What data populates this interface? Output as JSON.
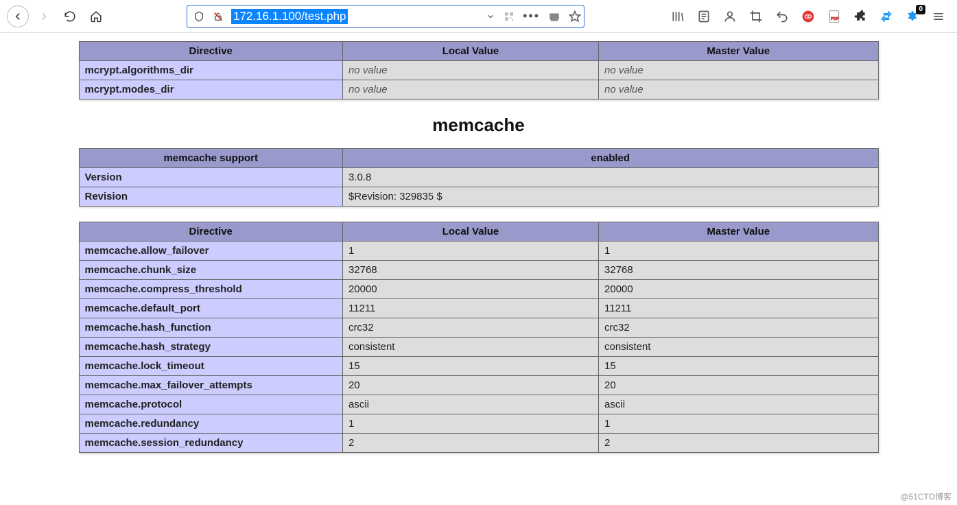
{
  "browser": {
    "url": "172.16.1.100/test.php",
    "badge_count": "0"
  },
  "table1": {
    "headers": [
      "Directive",
      "Local Value",
      "Master Value"
    ],
    "rows": [
      {
        "dir": "mcrypt.algorithms_dir",
        "local": "no value",
        "master": "no value",
        "italic": true
      },
      {
        "dir": "mcrypt.modes_dir",
        "local": "no value",
        "master": "no value",
        "italic": true
      }
    ]
  },
  "section_title": "memcache",
  "table2": {
    "header_left": "memcache support",
    "header_right": "enabled",
    "rows": [
      {
        "k": "Version",
        "v": "3.0.8"
      },
      {
        "k": "Revision",
        "v": "$Revision: 329835 $"
      }
    ]
  },
  "table3": {
    "headers": [
      "Directive",
      "Local Value",
      "Master Value"
    ],
    "rows": [
      {
        "dir": "memcache.allow_failover",
        "local": "1",
        "master": "1"
      },
      {
        "dir": "memcache.chunk_size",
        "local": "32768",
        "master": "32768"
      },
      {
        "dir": "memcache.compress_threshold",
        "local": "20000",
        "master": "20000"
      },
      {
        "dir": "memcache.default_port",
        "local": "11211",
        "master": "11211"
      },
      {
        "dir": "memcache.hash_function",
        "local": "crc32",
        "master": "crc32"
      },
      {
        "dir": "memcache.hash_strategy",
        "local": "consistent",
        "master": "consistent"
      },
      {
        "dir": "memcache.lock_timeout",
        "local": "15",
        "master": "15"
      },
      {
        "dir": "memcache.max_failover_attempts",
        "local": "20",
        "master": "20"
      },
      {
        "dir": "memcache.protocol",
        "local": "ascii",
        "master": "ascii"
      },
      {
        "dir": "memcache.redundancy",
        "local": "1",
        "master": "1"
      },
      {
        "dir": "memcache.session_redundancy",
        "local": "2",
        "master": "2"
      }
    ]
  },
  "watermark": "@51CTO博客",
  "colors": {
    "table_header_bg": "#9999cc",
    "table_key_bg": "#ccccff",
    "table_val_bg": "#dddddd",
    "url_highlight_bg": "#0a84ff",
    "urlbar_border": "#2a72d4"
  }
}
